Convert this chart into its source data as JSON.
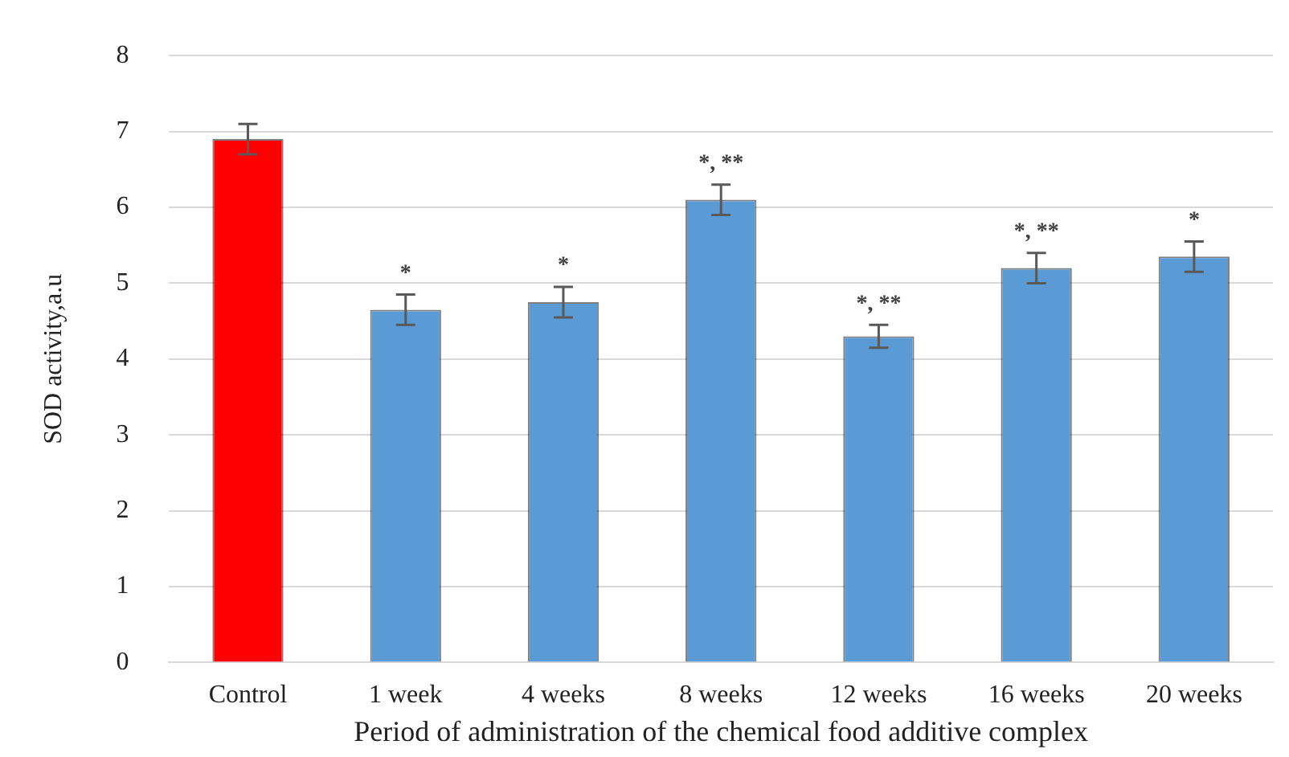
{
  "chart_data": {
    "type": "bar",
    "xlabel": "Period of administration of the chemical food additive complex",
    "ylabel": "SOD activity,a.u",
    "categories": [
      "Control",
      "1 week",
      "4 weeks",
      "8 weeks",
      "12 weeks",
      "16 weeks",
      "20 weeks"
    ],
    "values": [
      6.9,
      4.65,
      4.75,
      6.1,
      4.3,
      5.2,
      5.35
    ],
    "colors": [
      "#ff0000",
      "#5b9bd5",
      "#5b9bd5",
      "#5b9bd5",
      "#5b9bd5",
      "#5b9bd5",
      "#5b9bd5"
    ],
    "errors": [
      0.2,
      0.2,
      0.2,
      0.2,
      0.15,
      0.2,
      0.2
    ],
    "ylim": [
      0,
      8
    ],
    "yticks": [
      0,
      1,
      2,
      3,
      4,
      5,
      6,
      7,
      8
    ],
    "grid": "y",
    "legend": false,
    "annotations": [
      {
        "text": "*",
        "x": "1 week",
        "y": 4.65
      },
      {
        "text": "*",
        "x": "4 weeks",
        "y": 4.75
      },
      {
        "text": "*, **",
        "x": "8 weeks",
        "y": 6.1
      },
      {
        "text": "*, **",
        "x": "12 weeks",
        "y": 4.3
      },
      {
        "text": "*, **",
        "x": "16 weeks",
        "y": 5.2
      },
      {
        "text": "*",
        "x": "20 weeks",
        "y": 5.35
      }
    ]
  }
}
